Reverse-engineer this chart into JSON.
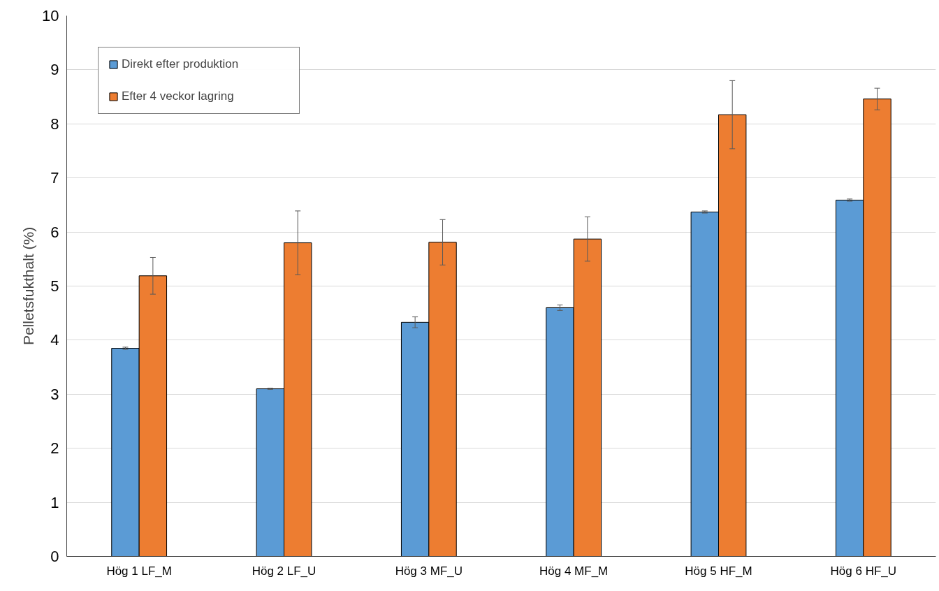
{
  "chart_data": {
    "type": "bar",
    "ylabel": "Pelletsfukthalt (%)",
    "categories": [
      "Hög 1 LF_M",
      "Hög 2 LF_U",
      "Hög 3 MF_U",
      "Hög 4 MF_M",
      "Hög 5 HF_M",
      "Hög 6 HF_U"
    ],
    "series": [
      {
        "name": "Direkt efter produktion",
        "color": "#5b9bd5",
        "values": [
          3.85,
          3.1,
          4.33,
          4.6,
          6.37,
          6.59
        ],
        "errors": [
          0.02,
          0.01,
          0.1,
          0.05,
          0.02,
          0.02
        ]
      },
      {
        "name": "Efter 4 veckor lagring",
        "color": "#ed7d31",
        "values": [
          5.19,
          5.8,
          5.81,
          5.87,
          8.17,
          8.46
        ],
        "errors": [
          0.34,
          0.59,
          0.42,
          0.41,
          0.63,
          0.2
        ]
      }
    ],
    "ylim": [
      0,
      10
    ],
    "yticks": [
      0,
      1,
      2,
      3,
      4,
      5,
      6,
      7,
      8,
      9,
      10
    ],
    "grid": "y",
    "legend": "top left"
  }
}
